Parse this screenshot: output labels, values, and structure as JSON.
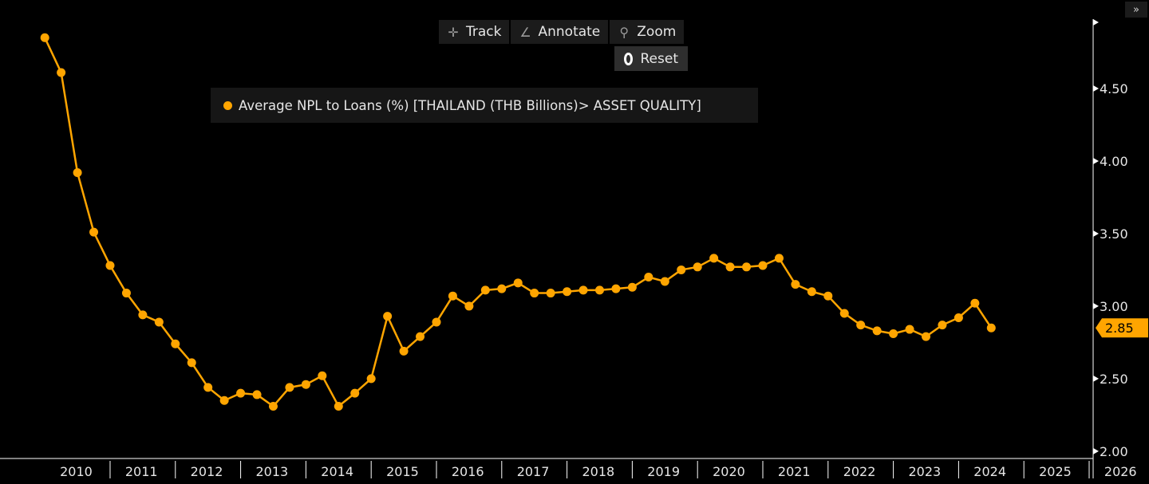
{
  "toolbar": {
    "track_label": "Track",
    "annotate_label": "Annotate",
    "zoom_label": "Zoom",
    "reset_label": "Reset",
    "collapse_label": "»"
  },
  "legend": {
    "label": "Average NPL to Loans (%) [THAILAND (THB Billions)> ASSET QUALITY]"
  },
  "colors": {
    "series": "#ffa500",
    "background": "#000000",
    "axis": "#ffffff"
  },
  "chart_data": {
    "type": "line",
    "series": [
      {
        "name": "Average NPL to Loans (%) [THAILAND (THB Billions)> ASSET QUALITY]",
        "color": "#ffa500",
        "x": [
          2010.0,
          2010.25,
          2010.5,
          2010.75,
          2011.0,
          2011.25,
          2011.5,
          2011.75,
          2012.0,
          2012.25,
          2012.5,
          2012.75,
          2013.0,
          2013.25,
          2013.5,
          2013.75,
          2014.0,
          2014.25,
          2014.5,
          2014.75,
          2015.0,
          2015.25,
          2015.5,
          2015.75,
          2016.0,
          2016.25,
          2016.5,
          2016.75,
          2017.0,
          2017.25,
          2017.5,
          2017.75,
          2018.0,
          2018.25,
          2018.5,
          2018.75,
          2019.0,
          2019.25,
          2019.5,
          2019.75,
          2020.0,
          2020.25,
          2020.5,
          2020.75,
          2021.0,
          2021.25,
          2021.5,
          2021.75,
          2022.0,
          2022.25,
          2022.5,
          2022.75,
          2023.0,
          2023.25,
          2023.5,
          2023.75,
          2024.0,
          2024.25,
          2024.5,
          2024.75
        ],
        "values": [
          4.85,
          4.61,
          3.92,
          3.51,
          3.28,
          3.09,
          2.94,
          2.89,
          2.74,
          2.61,
          2.44,
          2.35,
          2.4,
          2.39,
          2.31,
          2.44,
          2.46,
          2.52,
          2.31,
          2.4,
          2.5,
          2.93,
          2.69,
          2.79,
          2.89,
          3.07,
          3.0,
          3.11,
          3.12,
          3.16,
          3.09,
          3.09,
          3.1,
          3.11,
          3.11,
          3.12,
          3.13,
          3.2,
          3.17,
          3.25,
          3.27,
          3.33,
          3.27,
          3.27,
          3.28,
          3.33,
          3.15,
          3.1,
          3.07,
          2.95,
          2.87,
          2.83,
          2.81,
          2.84,
          2.79,
          2.87,
          2.92,
          3.02,
          2.85,
          2.85
        ]
      }
    ],
    "x_tick_labels": [
      "2010",
      "2011",
      "2012",
      "2013",
      "2014",
      "2015",
      "2016",
      "2017",
      "2018",
      "2019",
      "2020",
      "2021",
      "2022",
      "2023",
      "2024",
      "2025",
      "2026"
    ],
    "y_tick_labels": [
      "2.00",
      "2.50",
      "3.00",
      "3.50",
      "4.00",
      "4.50"
    ],
    "y_ticks": [
      2.0,
      2.5,
      3.0,
      3.5,
      4.0,
      4.5
    ],
    "xlim": [
      2009.9,
      2026.0
    ],
    "ylim": [
      1.95,
      5.0
    ],
    "last_value_label": "2.85",
    "last_value": 2.85,
    "grid": false,
    "legend_position": "top-center"
  }
}
